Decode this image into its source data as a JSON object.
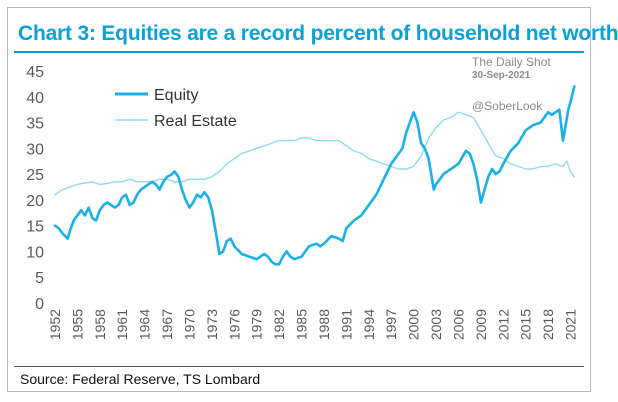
{
  "title": "Chart 3: Equities are a record percent of household net worth",
  "source": "Source: Federal Reserve, TS Lombard",
  "watermark": {
    "publisher": "The Daily Shot",
    "date": "30-Sep-2021",
    "handle": "@SoberLook"
  },
  "colors": {
    "title": "#0aa0d8",
    "equity": "#1ab0e8",
    "real_estate": "#8fd8f2",
    "axis_text": "#595959"
  },
  "chart_data": {
    "type": "line",
    "title": "Chart 3: Equities are a record percent of household net worth",
    "xlabel": "",
    "ylabel": "",
    "ylim": [
      0,
      45
    ],
    "xlim": [
      1952,
      2021.6
    ],
    "yticks": [
      "0",
      "5",
      "10",
      "15",
      "20",
      "25",
      "30",
      "35",
      "40",
      "45"
    ],
    "xticks": [
      "1952",
      "1955",
      "1958",
      "1961",
      "1964",
      "1967",
      "1970",
      "1973",
      "1976",
      "1979",
      "1982",
      "1985",
      "1988",
      "1991",
      "1994",
      "1997",
      "2000",
      "2003",
      "2006",
      "2009",
      "2012",
      "2015",
      "2018",
      "2021"
    ],
    "legend": "top-left",
    "series": [
      {
        "name": "Equity",
        "x": [
          1952,
          1952.5,
          1953,
          1953.7,
          1954,
          1954.5,
          1955,
          1955.5,
          1956,
          1956.5,
          1957,
          1957.5,
          1958,
          1958.5,
          1959,
          1959.5,
          1960,
          1960.5,
          1961,
          1961.5,
          1962,
          1962.5,
          1963,
          1963.5,
          1964,
          1964.5,
          1965,
          1965.5,
          1966,
          1966.5,
          1967,
          1967.5,
          1968,
          1968.5,
          1969,
          1969.5,
          1970,
          1970.5,
          1971,
          1971.5,
          1972,
          1972.5,
          1973,
          1973.5,
          1974,
          1974.5,
          1975,
          1975.5,
          1976,
          1977,
          1978,
          1979,
          1980,
          1980.5,
          1981,
          1981.5,
          1982,
          1982.5,
          1983,
          1983.5,
          1984,
          1985,
          1986,
          1987,
          1987.5,
          1988,
          1989,
          1990,
          1990.5,
          1991,
          1992,
          1993,
          1994,
          1995,
          1996,
          1997,
          1998,
          1998.5,
          1999,
          2000,
          2000.5,
          2001,
          2001.5,
          2002,
          2002.7,
          2003,
          2003.5,
          2004,
          2005,
          2006,
          2007,
          2007.5,
          2008,
          2008.5,
          2009,
          2009.5,
          2010,
          2010.5,
          2011,
          2011.5,
          2012,
          2013,
          2014,
          2015,
          2016,
          2017,
          2018,
          2018.5,
          2019,
          2019.5,
          2020,
          2020.3,
          2020.7,
          2021,
          2021.5
        ],
        "values": [
          15,
          14.5,
          13.5,
          12.5,
          14,
          16,
          17,
          18,
          17,
          18.5,
          16.5,
          16,
          18,
          19,
          19.5,
          19,
          18.5,
          19,
          20.5,
          21,
          19,
          19.5,
          21,
          22,
          22.5,
          23,
          23.5,
          23,
          22,
          23.5,
          24.5,
          24.8,
          25.5,
          24.5,
          22,
          20,
          18.5,
          19.5,
          21,
          20.5,
          21.5,
          20.5,
          18,
          14,
          9.5,
          10,
          12,
          12.5,
          11,
          9.5,
          9,
          8.5,
          9.5,
          9,
          8,
          7.5,
          7.5,
          9,
          10,
          9,
          8.5,
          9,
          11,
          11.5,
          11,
          11.5,
          13,
          12.5,
          12,
          14.5,
          16,
          17,
          19,
          21,
          24,
          27,
          29,
          30,
          33,
          37,
          35,
          31,
          30,
          28,
          22,
          23,
          24,
          25,
          26,
          27,
          29.5,
          29,
          27,
          24,
          19.5,
          22,
          24.5,
          26,
          25,
          25.5,
          27,
          29.5,
          31,
          33.5,
          34.5,
          35,
          37,
          36.5,
          37,
          37.5,
          31.5,
          34,
          37.5,
          39,
          42
        ]
      },
      {
        "name": "Real Estate",
        "x": [
          1952,
          1953,
          1954,
          1955,
          1956,
          1957,
          1958,
          1959,
          1960,
          1961,
          1962,
          1963,
          1964,
          1965,
          1966,
          1967,
          1968,
          1969,
          1970,
          1971,
          1972,
          1973,
          1974,
          1975,
          1976,
          1977,
          1978,
          1979,
          1980,
          1981,
          1982,
          1983,
          1984,
          1985,
          1986,
          1987,
          1988,
          1989,
          1990,
          1991,
          1992,
          1993,
          1994,
          1995,
          1996,
          1997,
          1998,
          1999,
          2000,
          2001,
          2002,
          2003,
          2004,
          2005,
          2006,
          2007,
          2008,
          2009,
          2010,
          2011,
          2012,
          2013,
          2014,
          2015,
          2016,
          2017,
          2018,
          2019,
          2020,
          2020.5,
          2021,
          2021.5
        ],
        "values": [
          21,
          22,
          22.5,
          23,
          23.3,
          23.5,
          23,
          23.2,
          23.5,
          23.5,
          24,
          23.5,
          23.5,
          23.5,
          24,
          24,
          23.5,
          23.5,
          24,
          24,
          24,
          24.5,
          25.5,
          27,
          28,
          29,
          29.5,
          30,
          30.5,
          31,
          31.5,
          31.5,
          31.5,
          32,
          32,
          31.5,
          31.5,
          31.5,
          31.5,
          30.5,
          29.5,
          29,
          28,
          27.5,
          27,
          26.5,
          26,
          26,
          26.5,
          28.5,
          32,
          34,
          35.5,
          36,
          37,
          36.5,
          36,
          33.5,
          31,
          28.5,
          28,
          27,
          26.5,
          26,
          26,
          26.5,
          26.5,
          27,
          26.5,
          27.5,
          25.5,
          24.5
        ]
      }
    ]
  }
}
